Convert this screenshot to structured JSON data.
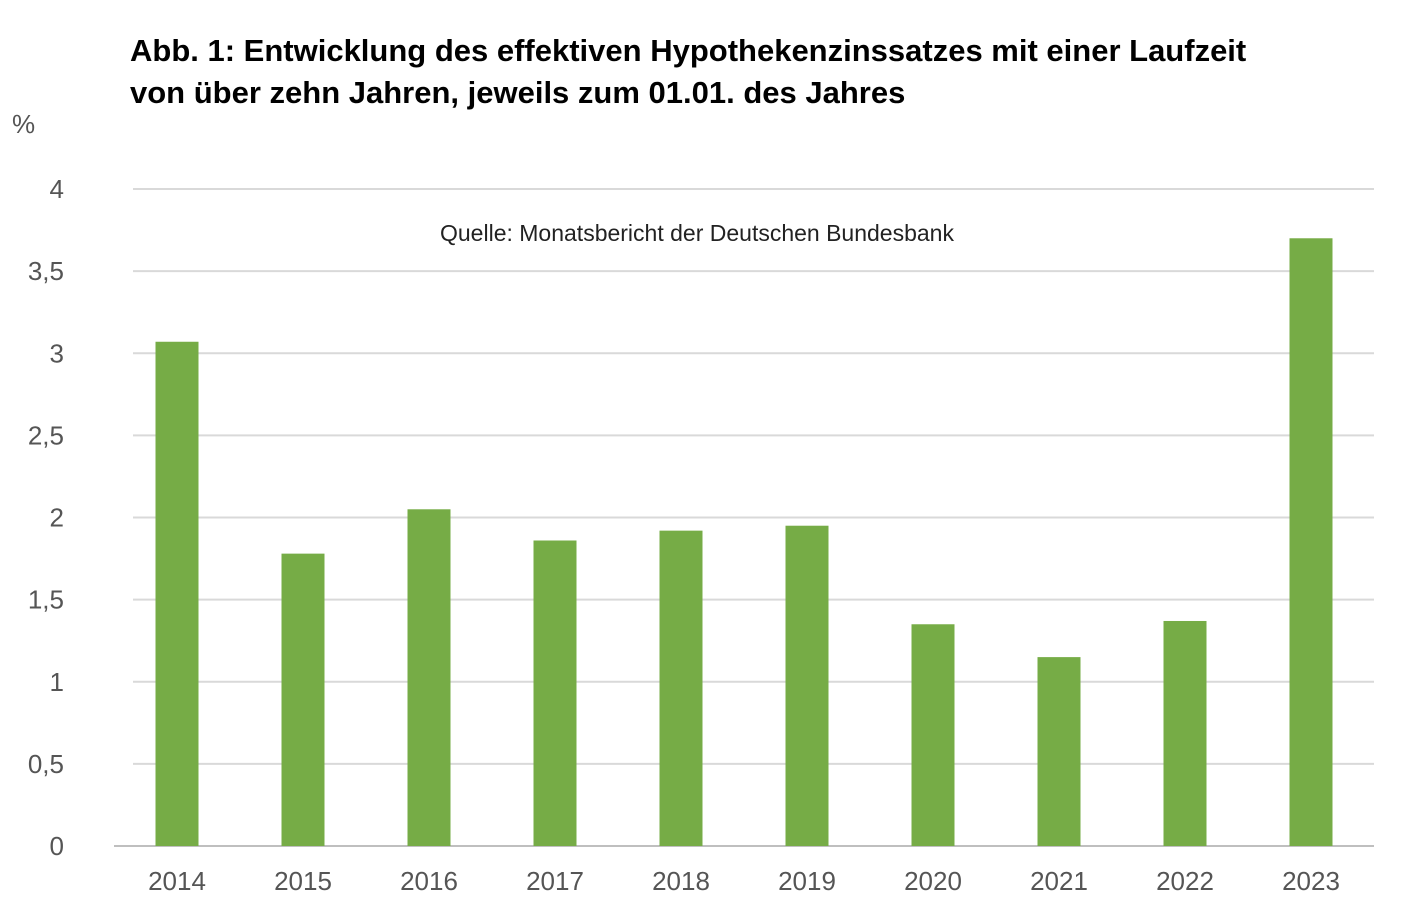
{
  "chart_data": {
    "type": "bar",
    "title_lines": [
      "Abb. 1: Entwicklung des effektiven Hypothekenzinssatzes mit einer Laufzeit",
      "von über zehn Jahren, jeweils zum 01.01. des Jahres"
    ],
    "y_unit": "%",
    "annotation": "Quelle: Monatsbericht der Deutschen Bundesbank",
    "categories": [
      "2014",
      "2015",
      "2016",
      "2017",
      "2018",
      "2019",
      "2020",
      "2021",
      "2022",
      "2023"
    ],
    "values": [
      3.07,
      1.78,
      2.05,
      1.86,
      1.92,
      1.95,
      1.35,
      1.15,
      1.37,
      3.7
    ],
    "ylim": [
      0,
      4
    ],
    "yticks": [
      0,
      0.5,
      1,
      1.5,
      2,
      2.5,
      3,
      3.5,
      4
    ],
    "ytick_labels": [
      "0",
      "0,5",
      "1",
      "1,5",
      "2",
      "2,5",
      "3",
      "3,5",
      "4"
    ],
    "grid": true,
    "legend": "none",
    "colors": {
      "bar": "#76ac46",
      "grid": "#d9d9d9",
      "axis": "#bfbfbf"
    }
  }
}
